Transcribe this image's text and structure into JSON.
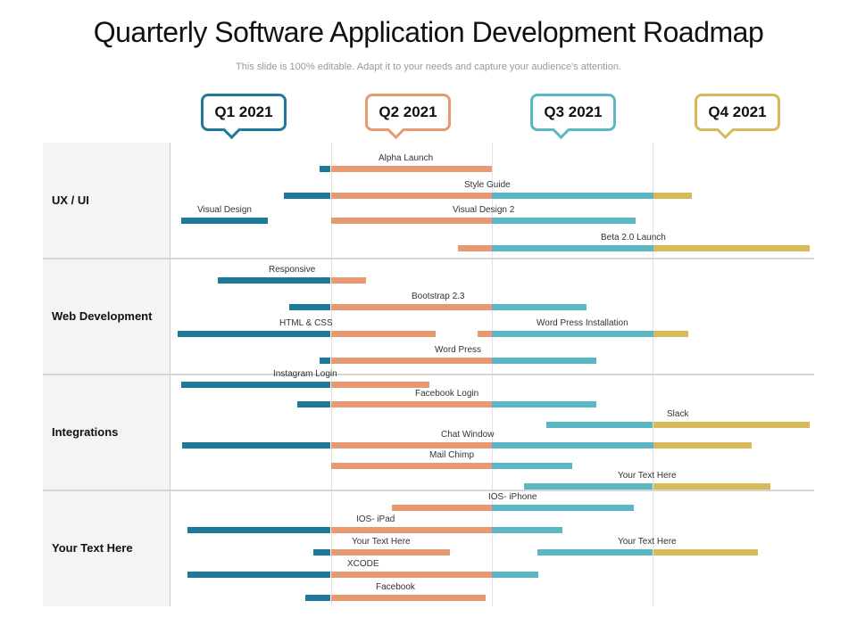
{
  "title": "Quarterly Software Application Development Roadmap",
  "subtitle": "This slide is 100% editable. Adapt it to your needs and capture your audience's attention.",
  "quarters": [
    {
      "label": "Q1 2021",
      "color": "#1f7a99"
    },
    {
      "label": "Q2 2021",
      "color": "#e8996f"
    },
    {
      "label": "Q3 2021",
      "color": "#5bb7c3"
    },
    {
      "label": "Q4 2021",
      "color": "#d8b95a"
    }
  ],
  "groups": [
    {
      "label": "UX / UI"
    },
    {
      "label": "Web Development"
    },
    {
      "label": "Integrations"
    },
    {
      "label": "Your Text Here"
    }
  ],
  "tasks": [
    {
      "group": 0,
      "label": "Alpha Launch",
      "start": 0.93,
      "end": 2.0
    },
    {
      "group": 0,
      "label": "Style Guide",
      "start": 0.71,
      "end": 3.24
    },
    {
      "group": 0,
      "label": "Visual Design",
      "start": 0.07,
      "end": 0.61
    },
    {
      "group": 0,
      "label": "Visual Design 2",
      "start": 1.0,
      "end": 2.89
    },
    {
      "group": 0,
      "label": "Beta 2.0 Launch",
      "start": 1.79,
      "end": 3.97
    },
    {
      "group": 1,
      "label": "Responsive",
      "start": 0.3,
      "end": 1.22
    },
    {
      "group": 1,
      "label": "Bootstrap 2.3",
      "start": 0.74,
      "end": 2.59
    },
    {
      "group": 1,
      "label": "HTML & CSS",
      "start": 0.05,
      "end": 1.65
    },
    {
      "group": 1,
      "label": "Word Press Installation",
      "start": 1.91,
      "end": 3.22
    },
    {
      "group": 1,
      "label": "Word Press",
      "start": 0.93,
      "end": 2.65
    },
    {
      "group": 2,
      "label": "Instagram Login",
      "start": 0.07,
      "end": 1.61
    },
    {
      "group": 2,
      "label": "Facebook Login",
      "start": 0.79,
      "end": 2.65
    },
    {
      "group": 2,
      "label": "Slack",
      "start": 2.34,
      "end": 3.97
    },
    {
      "group": 2,
      "label": "Chat Window",
      "start": 0.08,
      "end": 3.61
    },
    {
      "group": 2,
      "label": "Mail Chimp",
      "start": 1.0,
      "end": 2.5
    },
    {
      "group": 2,
      "label": "Your Text Here",
      "start": 2.2,
      "end": 3.73
    },
    {
      "group": 3,
      "label": "IOS- iPhone",
      "start": 1.38,
      "end": 2.88
    },
    {
      "group": 3,
      "label": "IOS- iPad",
      "start": 0.11,
      "end": 2.44
    },
    {
      "group": 3,
      "label": "Your Text Here",
      "start": 0.89,
      "end": 1.74
    },
    {
      "group": 3,
      "label": "Your Text Here",
      "start": 2.28,
      "end": 3.65
    },
    {
      "group": 3,
      "label": "XCODE",
      "start": 0.11,
      "end": 2.29
    },
    {
      "group": 3,
      "label": "Facebook",
      "start": 0.84,
      "end": 1.96
    }
  ]
}
